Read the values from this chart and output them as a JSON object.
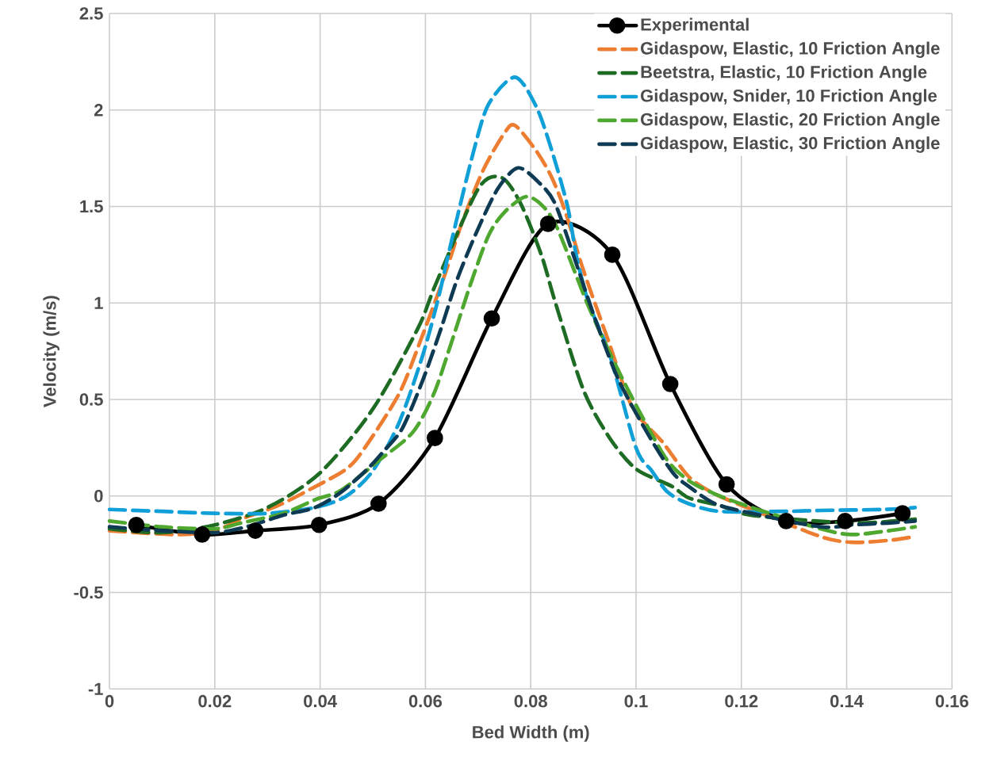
{
  "chart_data": {
    "type": "line",
    "xlabel": "Bed Width (m)",
    "ylabel": "Velocity (m/s)",
    "xlim": [
      0,
      0.16
    ],
    "ylim": [
      -1,
      2.5
    ],
    "xticks": [
      0,
      0.02,
      0.04,
      0.06,
      0.08,
      0.1,
      0.12,
      0.14,
      0.16
    ],
    "yticks": [
      -1,
      -0.5,
      0,
      0.5,
      1,
      1.5,
      2,
      2.5
    ],
    "grid": true,
    "legend": "top right",
    "series": [
      {
        "name": "Experimental",
        "color": "#000000",
        "marker": "circle",
        "line_style": "solid",
        "x": [
          0.0051,
          0.0176,
          0.0277,
          0.0398,
          0.0511,
          0.0618,
          0.0726,
          0.0833,
          0.0955,
          0.1065,
          0.1172,
          0.1285,
          0.1397,
          0.1506
        ],
        "values": [
          -0.15,
          -0.2,
          -0.18,
          -0.15,
          -0.04,
          0.3,
          0.92,
          1.41,
          1.25,
          0.58,
          0.06,
          -0.13,
          -0.13,
          -0.09
        ]
      },
      {
        "name": "Gidaspow, Elastic, 10 Friction Angle",
        "color": "#ed7d31",
        "marker": "none",
        "line_style": "dashed",
        "x": [
          0,
          0.0128,
          0.02,
          0.025,
          0.032,
          0.0385,
          0.045,
          0.0485,
          0.055,
          0.059,
          0.0636,
          0.067,
          0.071,
          0.075,
          0.077,
          0.081,
          0.084,
          0.0866,
          0.09,
          0.0948,
          0.0993,
          0.105,
          0.11,
          0.115,
          0.122,
          0.135,
          0.141,
          0.148,
          0.153
        ],
        "values": [
          -0.18,
          -0.2,
          -0.18,
          -0.12,
          -0.05,
          0.04,
          0.14,
          0.25,
          0.53,
          0.8,
          1.14,
          1.42,
          1.69,
          1.88,
          1.92,
          1.79,
          1.65,
          1.47,
          1.17,
          0.8,
          0.46,
          0.28,
          0.1,
          0.01,
          -0.07,
          -0.21,
          -0.24,
          -0.23,
          -0.21
        ]
      },
      {
        "name": "Beetstra, Elastic, 10 Friction Angle",
        "color": "#1e6b24",
        "marker": "none",
        "line_style": "dashed",
        "x": [
          0,
          0.01,
          0.02,
          0.03,
          0.04,
          0.05,
          0.0586,
          0.062,
          0.07,
          0.0744,
          0.078,
          0.082,
          0.0847,
          0.09,
          0.095,
          0.1,
          0.1068,
          0.11,
          0.116,
          0.122,
          0.141,
          0.153
        ],
        "values": [
          -0.17,
          -0.19,
          -0.15,
          -0.06,
          0.12,
          0.45,
          0.87,
          1.1,
          1.59,
          1.65,
          1.52,
          1.25,
          1.0,
          0.55,
          0.3,
          0.14,
          0.05,
          -0.01,
          -0.05,
          -0.1,
          -0.14,
          -0.12
        ]
      },
      {
        "name": "Gidaspow, Snider, 10 Friction Angle",
        "color": "#119fd8",
        "marker": "none",
        "line_style": "dashed",
        "x": [
          0,
          0.01,
          0.02,
          0.03,
          0.039,
          0.045,
          0.05,
          0.055,
          0.0595,
          0.0625,
          0.0646,
          0.069,
          0.072,
          0.077,
          0.081,
          0.084,
          0.087,
          0.0887,
          0.091,
          0.095,
          0.1,
          0.103,
          0.106,
          0.11,
          0.116,
          0.128,
          0.135,
          0.147,
          0.153
        ],
        "values": [
          -0.07,
          -0.08,
          -0.09,
          -0.09,
          -0.06,
          0.0,
          0.13,
          0.38,
          0.73,
          1.03,
          1.28,
          1.77,
          2.03,
          2.17,
          2.02,
          1.79,
          1.5,
          1.24,
          1.0,
          0.73,
          0.25,
          0.13,
          0.02,
          -0.04,
          -0.08,
          -0.08,
          -0.075,
          -0.07,
          -0.06
        ]
      },
      {
        "name": "Gidaspow, Elastic, 20 Friction Angle",
        "color": "#4ea72e",
        "marker": "none",
        "line_style": "dashed",
        "x": [
          0,
          0.01,
          0.02,
          0.025,
          0.033,
          0.039,
          0.044,
          0.051,
          0.0576,
          0.0616,
          0.065,
          0.0686,
          0.072,
          0.075,
          0.079,
          0.082,
          0.085,
          0.0907,
          0.0952,
          0.1002,
          0.1058,
          0.11,
          0.115,
          0.122,
          0.135,
          0.141,
          0.148,
          0.153
        ],
        "values": [
          -0.13,
          -0.16,
          -0.17,
          -0.14,
          -0.09,
          -0.02,
          0.03,
          0.18,
          0.33,
          0.53,
          0.8,
          1.1,
          1.35,
          1.47,
          1.55,
          1.51,
          1.39,
          1.0,
          0.73,
          0.46,
          0.19,
          0.08,
          0.01,
          -0.06,
          -0.17,
          -0.2,
          -0.18,
          -0.16
        ]
      },
      {
        "name": "Gidaspow, Elastic, 30 Friction Angle",
        "color": "#0e3a53",
        "marker": "none",
        "line_style": "dashed",
        "x": [
          0,
          0.01,
          0.02,
          0.026,
          0.033,
          0.039,
          0.044,
          0.049,
          0.052,
          0.0556,
          0.0595,
          0.063,
          0.066,
          0.0696,
          0.0737,
          0.0776,
          0.0817,
          0.0847,
          0.0887,
          0.0922,
          0.0967,
          0.1027,
          0.107,
          0.11,
          0.115,
          0.122,
          0.135,
          0.141,
          0.148,
          0.153
        ],
        "values": [
          -0.16,
          -0.18,
          -0.19,
          -0.16,
          -0.1,
          -0.06,
          0.02,
          0.14,
          0.23,
          0.35,
          0.6,
          0.87,
          1.12,
          1.36,
          1.59,
          1.7,
          1.62,
          1.51,
          1.2,
          0.92,
          0.6,
          0.3,
          0.12,
          0.05,
          -0.04,
          -0.09,
          -0.16,
          -0.15,
          -0.14,
          -0.13
        ]
      }
    ]
  }
}
